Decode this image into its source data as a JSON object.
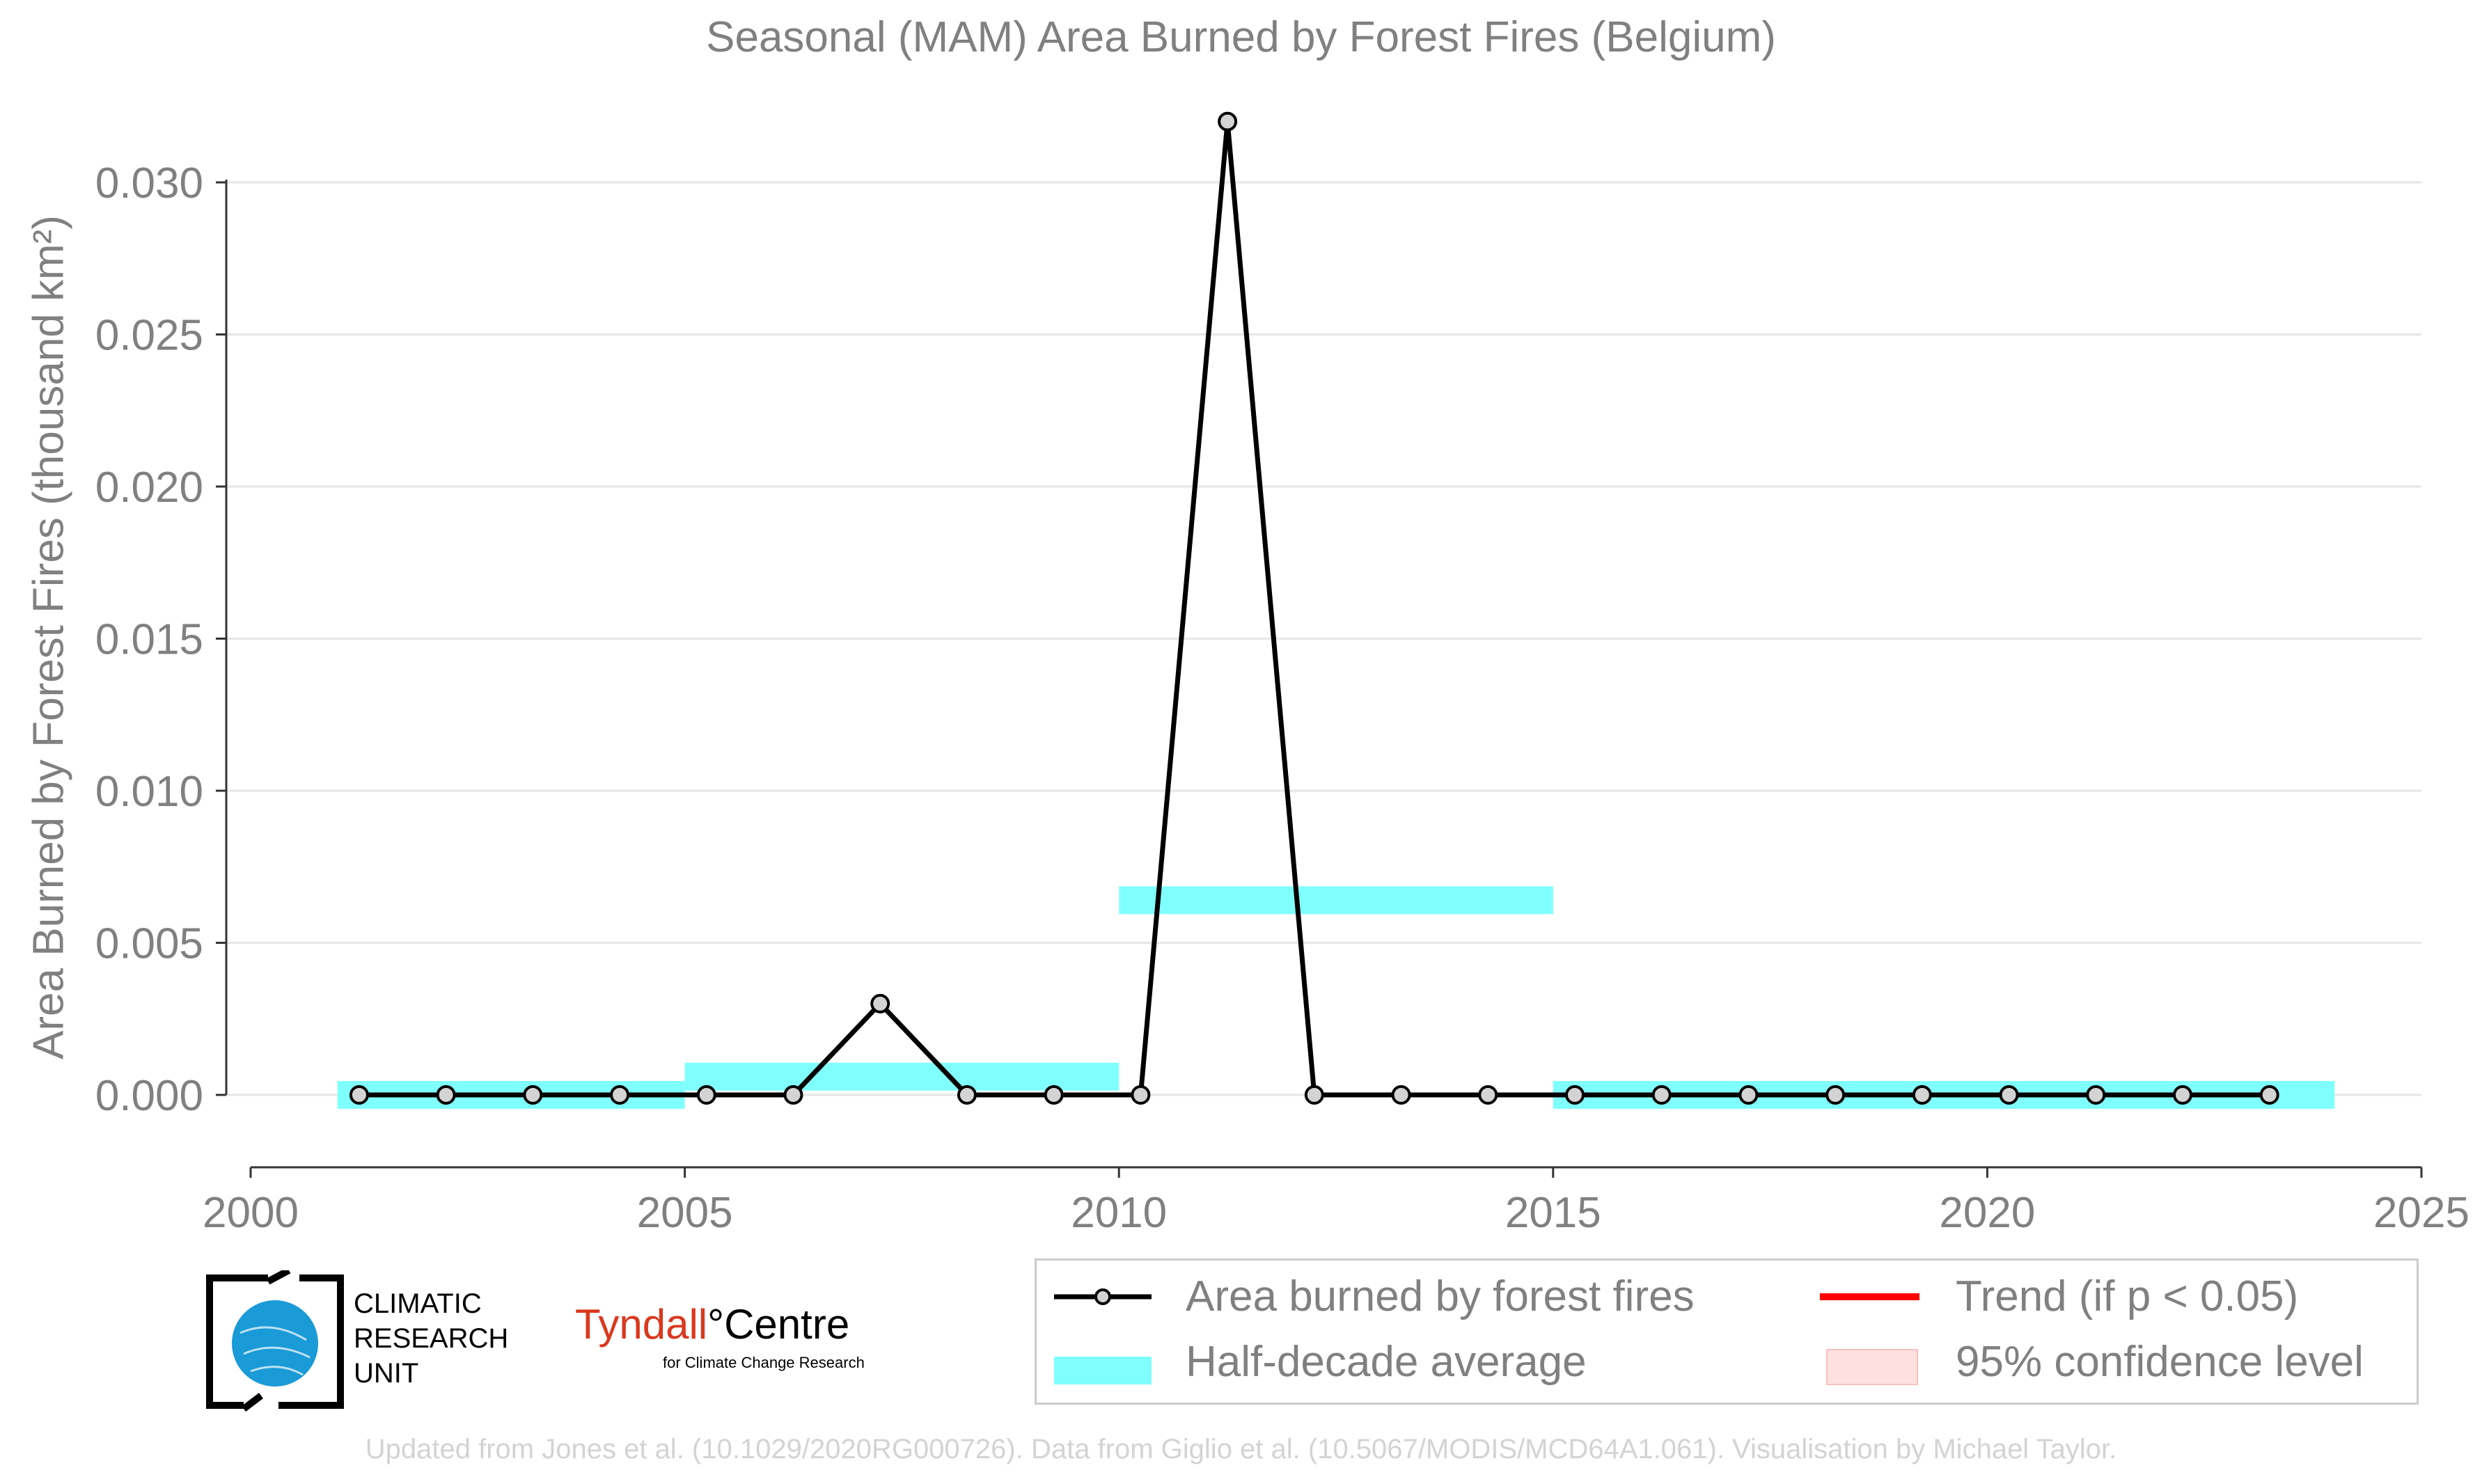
{
  "colors": {
    "line": "#000000",
    "marker_fill": "#d3d3d3",
    "half_decade": "#80ffff",
    "trend": "#ff0000",
    "confidence": "#ffe0e0",
    "text": "#808080",
    "grid": "#e6e6e6",
    "credit": "#d3d3d3"
  },
  "chart_data": {
    "type": "line",
    "title": "Seasonal (MAM) Area Burned by Forest Fires (Belgium)",
    "ylabel": "Area Burned by Forest Fires (thousand km²)",
    "xlabel": "",
    "xlim": [
      2000,
      2025
    ],
    "ylim": [
      -0.0024,
      0.0322
    ],
    "x_ticks": [
      "2000",
      "2005",
      "2010",
      "2015",
      "2020",
      "2025"
    ],
    "y_ticks": [
      "0.000",
      "0.005",
      "0.010",
      "0.015",
      "0.020",
      "0.025",
      "0.030"
    ],
    "grid": "horizontal",
    "series": [
      {
        "name": "Area burned by forest fires",
        "x": [
          2001.25,
          2002.25,
          2003.25,
          2004.25,
          2005.25,
          2006.25,
          2007.25,
          2008.25,
          2009.25,
          2010.25,
          2011.25,
          2012.25,
          2013.25,
          2014.25,
          2015.25,
          2016.25,
          2017.25,
          2018.25,
          2019.25,
          2020.25,
          2021.25,
          2022.25,
          2023.25
        ],
        "values": [
          0,
          0,
          0,
          0,
          0,
          0,
          0.003,
          0,
          0,
          0,
          0.032,
          0,
          0,
          0,
          0,
          0,
          0,
          0,
          0,
          0,
          0,
          0,
          0
        ]
      }
    ],
    "half_decade_average": [
      {
        "x_start": 2001,
        "x_end": 2005,
        "value": 0.0
      },
      {
        "x_start": 2005,
        "x_end": 2010,
        "value": 0.0006
      },
      {
        "x_start": 2010,
        "x_end": 2015,
        "value": 0.0064
      },
      {
        "x_start": 2015,
        "x_end": 2024,
        "value": 0.0
      }
    ],
    "legend": {
      "placement": "bottom-right",
      "entries": [
        "Area burned by forest fires",
        "Half-decade average",
        "Trend (if p < 0.05)",
        "95% confidence level"
      ]
    }
  },
  "logos": {
    "cru_line1": "CLIMATIC",
    "cru_line2": "RESEARCH",
    "cru_line3": "UNIT",
    "tyndall_part1": "Tyndall",
    "tyndall_part2": "°Centre",
    "tyndall_sub": "for Climate Change Research"
  },
  "credit": "Updated from Jones et al. (10.1029/2020RG000726). Data from Giglio et al. (10.5067/MODIS/MCD64A1.061). Visualisation by Michael Taylor."
}
